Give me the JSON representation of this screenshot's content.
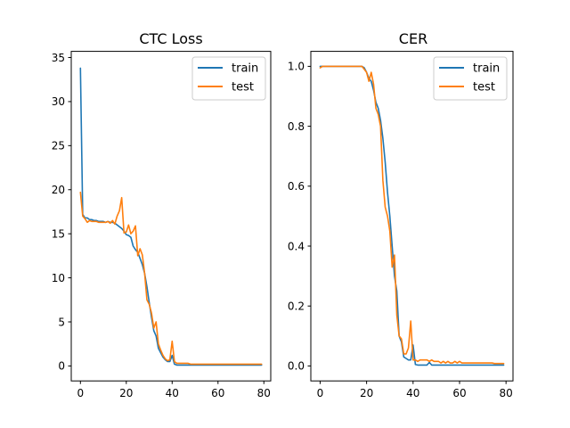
{
  "colors": {
    "train": "#1f77b4",
    "test": "#ff7f0e"
  },
  "chart_data": [
    {
      "type": "line",
      "title": "CTC Loss",
      "xlabel": "",
      "ylabel": "",
      "xlim": [
        -4,
        83
      ],
      "ylim": [
        -1.7,
        35.7
      ],
      "xticks": [
        0,
        20,
        40,
        60,
        80
      ],
      "yticks": [
        0,
        5,
        10,
        15,
        20,
        25,
        30,
        35
      ],
      "grid": false,
      "legend_loc": "upper right",
      "series": [
        {
          "name": "train",
          "color": "#1f77b4",
          "x": [
            0,
            1,
            2,
            3,
            4,
            5,
            6,
            7,
            8,
            9,
            10,
            11,
            12,
            13,
            14,
            15,
            16,
            17,
            18,
            19,
            20,
            21,
            22,
            23,
            24,
            25,
            26,
            27,
            28,
            29,
            30,
            31,
            32,
            33,
            34,
            35,
            36,
            37,
            38,
            39,
            40,
            41,
            42,
            43,
            44,
            45,
            46,
            47,
            48,
            49,
            50,
            51,
            52,
            53,
            54,
            55,
            56,
            57,
            58,
            59,
            60,
            61,
            62,
            63,
            64,
            65,
            66,
            67,
            68,
            69,
            70,
            71,
            72,
            73,
            74,
            75,
            76,
            77,
            78,
            79
          ],
          "y": [
            33.8,
            17.2,
            16.8,
            16.8,
            16.6,
            16.6,
            16.5,
            16.5,
            16.4,
            16.4,
            16.4,
            16.3,
            16.4,
            16.3,
            16.3,
            16.2,
            16.0,
            15.8,
            15.6,
            15.3,
            14.9,
            14.8,
            14.6,
            13.6,
            13.2,
            12.9,
            12.2,
            11.5,
            10.5,
            9.0,
            7.2,
            5.5,
            4.0,
            3.4,
            2.0,
            1.5,
            1.0,
            0.7,
            0.5,
            0.5,
            1.2,
            0.2,
            0.1,
            0.1,
            0.1,
            0.1,
            0.1,
            0.1,
            0.1,
            0.1,
            0.1,
            0.1,
            0.1,
            0.1,
            0.1,
            0.1,
            0.1,
            0.1,
            0.1,
            0.1,
            0.1,
            0.1,
            0.1,
            0.1,
            0.1,
            0.1,
            0.1,
            0.1,
            0.1,
            0.1,
            0.1,
            0.1,
            0.1,
            0.1,
            0.1,
            0.1,
            0.1,
            0.1,
            0.1,
            0.1
          ]
        },
        {
          "name": "test",
          "color": "#ff7f0e",
          "x": [
            0,
            1,
            2,
            3,
            4,
            5,
            6,
            7,
            8,
            9,
            10,
            11,
            12,
            13,
            14,
            15,
            16,
            17,
            18,
            19,
            20,
            21,
            22,
            23,
            24,
            25,
            26,
            27,
            28,
            29,
            30,
            31,
            32,
            33,
            34,
            35,
            36,
            37,
            38,
            39,
            40,
            41,
            42,
            43,
            44,
            45,
            46,
            47,
            48,
            49,
            50,
            51,
            52,
            53,
            54,
            55,
            56,
            57,
            58,
            59,
            60,
            61,
            62,
            63,
            64,
            65,
            66,
            67,
            68,
            69,
            70,
            71,
            72,
            73,
            74,
            75,
            76,
            77,
            78,
            79
          ],
          "y": [
            19.7,
            17.0,
            16.7,
            16.3,
            16.5,
            16.4,
            16.4,
            16.4,
            16.3,
            16.3,
            16.3,
            16.3,
            16.4,
            16.2,
            16.5,
            16.1,
            17.0,
            17.6,
            19.1,
            15.1,
            15.2,
            16.0,
            15.0,
            15.3,
            15.9,
            12.5,
            13.3,
            12.6,
            10.5,
            7.5,
            7.0,
            6.0,
            4.3,
            5.0,
            2.5,
            1.8,
            1.2,
            0.8,
            0.6,
            0.7,
            2.8,
            0.5,
            0.3,
            0.3,
            0.3,
            0.3,
            0.3,
            0.3,
            0.2,
            0.2,
            0.2,
            0.2,
            0.2,
            0.2,
            0.2,
            0.2,
            0.2,
            0.2,
            0.2,
            0.2,
            0.2,
            0.2,
            0.2,
            0.2,
            0.2,
            0.2,
            0.2,
            0.2,
            0.2,
            0.2,
            0.2,
            0.2,
            0.2,
            0.2,
            0.2,
            0.2,
            0.2,
            0.2,
            0.2,
            0.2
          ]
        }
      ]
    },
    {
      "type": "line",
      "title": "CER",
      "xlabel": "",
      "ylabel": "",
      "xlim": [
        -4,
        83
      ],
      "ylim": [
        -0.05,
        1.05
      ],
      "xticks": [
        0,
        20,
        40,
        60,
        80
      ],
      "yticks": [
        0.0,
        0.2,
        0.4,
        0.6,
        0.8,
        1.0
      ],
      "grid": false,
      "legend_loc": "upper right",
      "series": [
        {
          "name": "train",
          "color": "#1f77b4",
          "x": [
            0,
            1,
            2,
            3,
            4,
            5,
            6,
            7,
            8,
            9,
            10,
            11,
            12,
            13,
            14,
            15,
            16,
            17,
            18,
            19,
            20,
            21,
            22,
            23,
            24,
            25,
            26,
            27,
            28,
            29,
            30,
            31,
            32,
            33,
            34,
            35,
            36,
            37,
            38,
            39,
            40,
            41,
            42,
            43,
            44,
            45,
            46,
            47,
            48,
            49,
            50,
            51,
            52,
            53,
            54,
            55,
            56,
            57,
            58,
            59,
            60,
            61,
            62,
            63,
            64,
            65,
            66,
            67,
            68,
            69,
            70,
            71,
            72,
            73,
            74,
            75,
            76,
            77,
            78,
            79
          ],
          "y": [
            1.0,
            1.0,
            1.0,
            1.0,
            1.0,
            1.0,
            1.0,
            1.0,
            1.0,
            1.0,
            1.0,
            1.0,
            1.0,
            1.0,
            1.0,
            1.0,
            1.0,
            1.0,
            1.0,
            0.995,
            0.98,
            0.96,
            0.95,
            0.92,
            0.88,
            0.86,
            0.82,
            0.76,
            0.68,
            0.58,
            0.5,
            0.4,
            0.3,
            0.25,
            0.1,
            0.08,
            0.03,
            0.025,
            0.02,
            0.02,
            0.07,
            0.005,
            0.003,
            0.003,
            0.003,
            0.003,
            0.003,
            0.012,
            0.003,
            0.003,
            0.003,
            0.003,
            0.003,
            0.003,
            0.003,
            0.003,
            0.003,
            0.003,
            0.003,
            0.003,
            0.003,
            0.003,
            0.003,
            0.003,
            0.003,
            0.003,
            0.003,
            0.003,
            0.003,
            0.003,
            0.003,
            0.003,
            0.003,
            0.003,
            0.003,
            0.003,
            0.003,
            0.003,
            0.003,
            0.003
          ]
        },
        {
          "name": "test",
          "color": "#ff7f0e",
          "x": [
            0,
            1,
            2,
            3,
            4,
            5,
            6,
            7,
            8,
            9,
            10,
            11,
            12,
            13,
            14,
            15,
            16,
            17,
            18,
            19,
            20,
            21,
            22,
            23,
            24,
            25,
            26,
            27,
            28,
            29,
            30,
            31,
            32,
            33,
            34,
            35,
            36,
            37,
            38,
            39,
            40,
            41,
            42,
            43,
            44,
            45,
            46,
            47,
            48,
            49,
            50,
            51,
            52,
            53,
            54,
            55,
            56,
            57,
            58,
            59,
            60,
            61,
            62,
            63,
            64,
            65,
            66,
            67,
            68,
            69,
            70,
            71,
            72,
            73,
            74,
            75,
            76,
            77,
            78,
            79
          ],
          "y": [
            0.995,
            1.0,
            1.0,
            1.0,
            1.0,
            1.0,
            1.0,
            1.0,
            1.0,
            1.0,
            1.0,
            1.0,
            1.0,
            1.0,
            1.0,
            1.0,
            1.0,
            1.0,
            1.0,
            0.99,
            0.98,
            0.95,
            0.98,
            0.94,
            0.86,
            0.84,
            0.8,
            0.62,
            0.53,
            0.5,
            0.45,
            0.33,
            0.37,
            0.17,
            0.1,
            0.09,
            0.04,
            0.04,
            0.06,
            0.15,
            0.02,
            0.02,
            0.015,
            0.02,
            0.02,
            0.02,
            0.02,
            0.015,
            0.02,
            0.015,
            0.015,
            0.015,
            0.01,
            0.015,
            0.01,
            0.015,
            0.01,
            0.01,
            0.015,
            0.01,
            0.015,
            0.01,
            0.01,
            0.01,
            0.01,
            0.01,
            0.01,
            0.01,
            0.01,
            0.01,
            0.01,
            0.01,
            0.01,
            0.01,
            0.01,
            0.008,
            0.008,
            0.008,
            0.008,
            0.008
          ]
        }
      ]
    }
  ]
}
